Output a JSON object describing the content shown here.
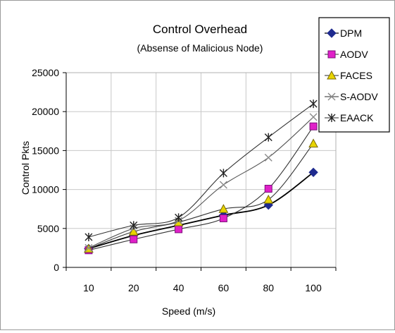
{
  "chart_data": {
    "type": "line",
    "title": "Control Overhead",
    "subtitle": "(Absense of Malicious Node)",
    "xlabel": "Speed (m/s)",
    "ylabel": "Control Pkts",
    "categories": [
      "10",
      "20",
      "40",
      "60",
      "80",
      "100"
    ],
    "y_ticks": [
      "0",
      "5000",
      "10000",
      "15000",
      "20000",
      "25000"
    ],
    "ylim": [
      0,
      25000
    ],
    "grid": true,
    "legend_position": "top-right",
    "series": [
      {
        "name": "DPM",
        "color": "#1f2b8f",
        "marker": "diamond",
        "values": [
          2400,
          4100,
          5400,
          6700,
          8000,
          12200
        ]
      },
      {
        "name": "AODV",
        "color": "#e020c8",
        "marker": "square",
        "values": [
          2200,
          3600,
          4900,
          6300,
          10100,
          18100
        ]
      },
      {
        "name": "FACES",
        "color": "#e8d400",
        "marker": "triangle",
        "values": [
          2400,
          4600,
          5800,
          7500,
          8700,
          15900
        ]
      },
      {
        "name": "S-AODV",
        "color": "#8a8a8a",
        "marker": "x",
        "values": [
          2500,
          5000,
          6000,
          10600,
          14100,
          19300
        ]
      },
      {
        "name": "EAACK",
        "color": "#222222",
        "marker": "asterisk",
        "values": [
          3900,
          5400,
          6400,
          12100,
          16700,
          21000
        ]
      }
    ]
  }
}
